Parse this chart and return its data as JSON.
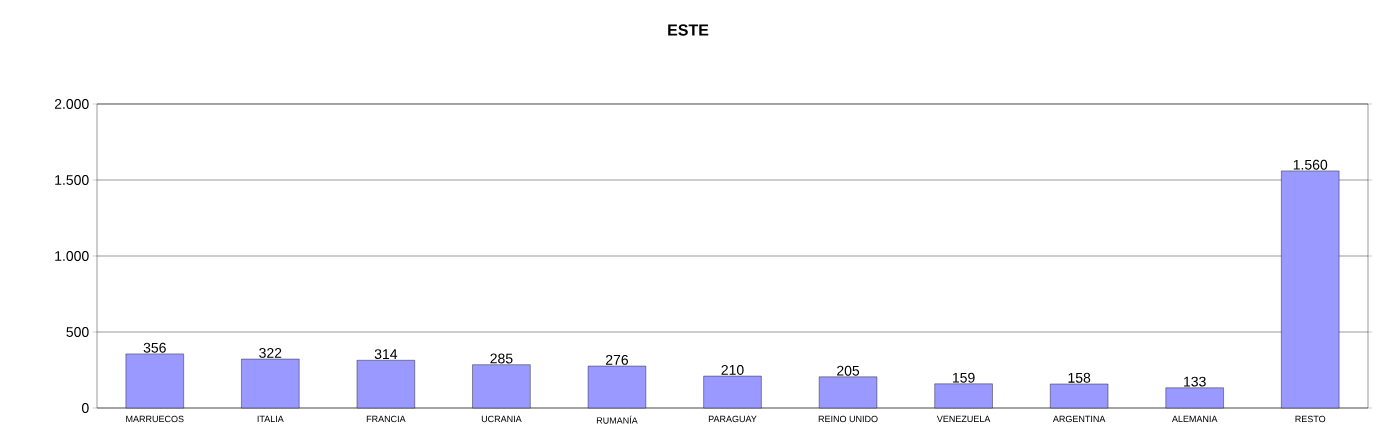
{
  "chart_data": {
    "type": "bar",
    "title": "ESTE",
    "categories": [
      "MARRUECOS",
      "ITALIA",
      "FRANCIA",
      "UCRANIA",
      "RUMANÍA",
      "PARAGUAY",
      "REINO UNIDO",
      "VENEZUELA",
      "ARGENTINA",
      "ALEMANIA",
      "RESTO"
    ],
    "values": [
      356,
      322,
      314,
      285,
      276,
      210,
      205,
      159,
      158,
      133,
      1560
    ],
    "value_labels": [
      "356",
      "322",
      "314",
      "285",
      "276",
      "210",
      "205",
      "159",
      "158",
      "133",
      "1.560"
    ],
    "color": "#9999ff",
    "ylim": [
      0,
      2000
    ],
    "yticks": [
      0,
      500,
      {
        "value": 1000,
        "label": "1.000"
      },
      {
        "value": 1500,
        "label": "1.500"
      },
      {
        "value": 2000,
        "label": "2.000"
      }
    ],
    "grid": "y"
  }
}
